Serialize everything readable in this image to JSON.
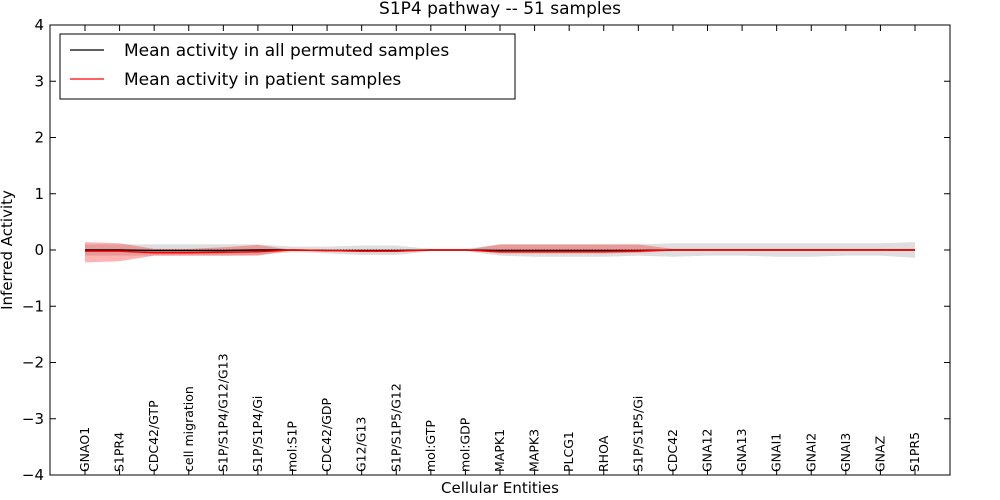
{
  "chart_data": {
    "type": "line",
    "title": "S1P4 pathway -- 51 samples",
    "xlabel": "Cellular Entities",
    "ylabel": "Inferred Activity",
    "ylim": [
      -4,
      4
    ],
    "yticks": [
      -4,
      -3,
      -2,
      -1,
      0,
      1,
      2,
      3,
      4
    ],
    "ytick_labels": [
      "−4",
      "−3",
      "−2",
      "−1",
      "0",
      "1",
      "2",
      "3",
      "4"
    ],
    "categories": [
      "GNAO1",
      "S1PR4",
      "CDC42/GTP",
      "cell migration",
      "S1P/S1P4/G12/G13",
      "S1P/S1P4/Gi",
      "mol:S1P",
      "CDC42/GDP",
      "G12/G13",
      "S1P/S1P5/G12",
      "mol:GTP",
      "mol:GDP",
      "MAPK1",
      "MAPK3",
      "PLCG1",
      "RHOA",
      "S1P/S1P5/Gi",
      "CDC42",
      "GNA12",
      "GNA13",
      "GNAI1",
      "GNAI2",
      "GNAI3",
      "GNAZ",
      "S1PR5"
    ],
    "legend_position": "top-left",
    "series": [
      {
        "name": "Mean activity in all permuted samples",
        "color": "#000000",
        "values": [
          0.0,
          0.0,
          -0.01,
          -0.01,
          -0.01,
          0.0,
          0.0,
          -0.01,
          -0.01,
          -0.01,
          0.0,
          0.0,
          -0.01,
          -0.01,
          -0.01,
          -0.01,
          -0.01,
          0.0,
          0.0,
          0.0,
          0.0,
          0.0,
          0.0,
          0.0,
          0.0
        ],
        "band_lower": [
          -0.1,
          -0.1,
          -0.1,
          -0.1,
          -0.1,
          -0.09,
          -0.04,
          -0.06,
          -0.09,
          -0.09,
          -0.02,
          -0.02,
          -0.1,
          -0.12,
          -0.12,
          -0.12,
          -0.1,
          -0.12,
          -0.1,
          -0.1,
          -0.12,
          -0.12,
          -0.1,
          -0.1,
          -0.14
        ],
        "band_upper": [
          0.1,
          0.1,
          0.1,
          0.1,
          0.1,
          0.1,
          0.06,
          0.06,
          0.08,
          0.08,
          0.02,
          0.02,
          0.1,
          0.1,
          0.1,
          0.1,
          0.1,
          0.12,
          0.12,
          0.12,
          0.12,
          0.12,
          0.12,
          0.12,
          0.14
        ]
      },
      {
        "name": "Mean activity in patient samples",
        "color": "#ff0000",
        "values": [
          -0.02,
          -0.02,
          -0.05,
          -0.05,
          -0.04,
          -0.03,
          0.0,
          -0.01,
          -0.02,
          -0.02,
          0.0,
          0.0,
          -0.03,
          -0.03,
          -0.03,
          -0.03,
          -0.02,
          0.0,
          0.0,
          0.0,
          0.0,
          0.0,
          0.0,
          0.0,
          0.0
        ],
        "band_lower": [
          -0.22,
          -0.2,
          -0.1,
          -0.1,
          -0.1,
          -0.1,
          0.0,
          -0.02,
          -0.04,
          -0.04,
          0.0,
          0.0,
          -0.06,
          -0.06,
          -0.06,
          -0.06,
          -0.05,
          -0.01,
          -0.01,
          -0.01,
          -0.01,
          -0.01,
          -0.01,
          -0.01,
          -0.01
        ],
        "band_upper": [
          0.14,
          0.12,
          0.02,
          0.02,
          0.05,
          0.09,
          0.0,
          0.0,
          0.0,
          0.0,
          0.0,
          0.0,
          0.1,
          0.1,
          0.1,
          0.1,
          0.1,
          0.02,
          0.02,
          0.02,
          0.02,
          0.02,
          0.02,
          0.02,
          0.02
        ]
      }
    ]
  }
}
